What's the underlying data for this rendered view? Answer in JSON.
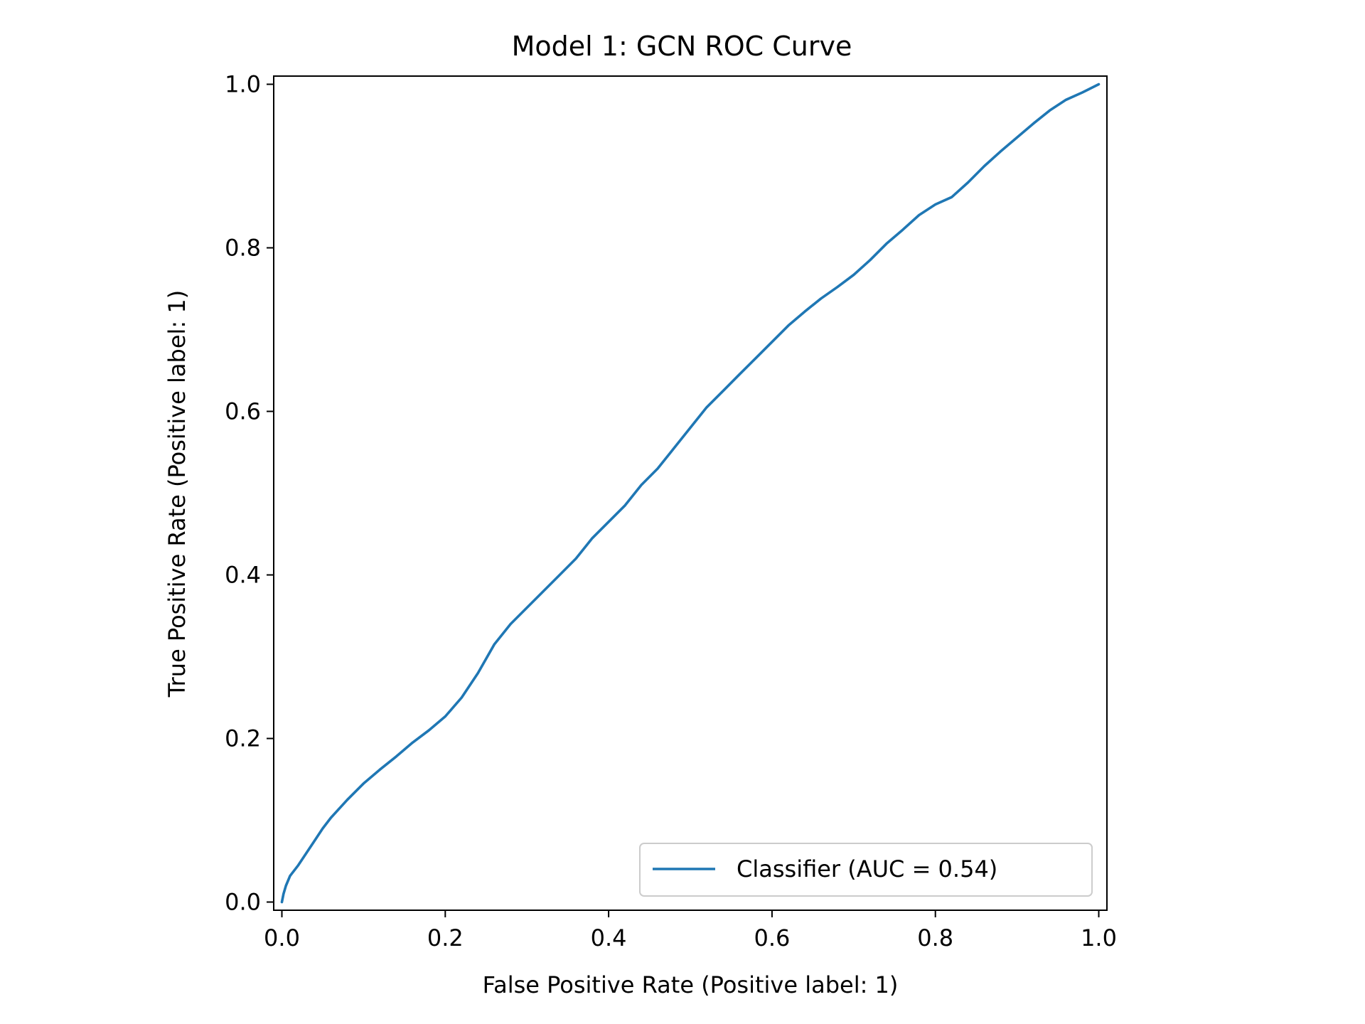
{
  "chart_data": {
    "type": "line",
    "title": "Model 1: GCN ROC Curve",
    "xlabel": "False Positive Rate (Positive label: 1)",
    "ylabel": "True Positive Rate (Positive label: 1)",
    "xlim": [
      -0.01,
      1.01
    ],
    "ylim": [
      -0.01,
      1.01
    ],
    "x_ticks": [
      0.0,
      0.2,
      0.4,
      0.6,
      0.8,
      1.0
    ],
    "x_tick_labels": [
      "0.0",
      "0.2",
      "0.4",
      "0.6",
      "0.8",
      "1.0"
    ],
    "y_ticks": [
      0.0,
      0.2,
      0.4,
      0.6,
      0.8,
      1.0
    ],
    "y_tick_labels": [
      "0.0",
      "0.2",
      "0.4",
      "0.6",
      "0.8",
      "1.0"
    ],
    "grid": false,
    "legend_position": "lower-right",
    "series": [
      {
        "name": "Classifier (AUC = 0.54)",
        "color": "#1f77b4",
        "x": [
          0.0,
          0.002,
          0.005,
          0.01,
          0.02,
          0.03,
          0.04,
          0.05,
          0.06,
          0.08,
          0.1,
          0.12,
          0.14,
          0.16,
          0.18,
          0.2,
          0.22,
          0.24,
          0.26,
          0.28,
          0.3,
          0.32,
          0.34,
          0.36,
          0.38,
          0.4,
          0.42,
          0.44,
          0.46,
          0.48,
          0.5,
          0.52,
          0.54,
          0.56,
          0.58,
          0.6,
          0.62,
          0.64,
          0.66,
          0.68,
          0.7,
          0.72,
          0.74,
          0.76,
          0.78,
          0.8,
          0.82,
          0.84,
          0.86,
          0.88,
          0.9,
          0.92,
          0.94,
          0.96,
          0.98,
          0.99,
          1.0
        ],
        "y": [
          0.0,
          0.01,
          0.02,
          0.032,
          0.045,
          0.06,
          0.075,
          0.09,
          0.103,
          0.125,
          0.145,
          0.162,
          0.178,
          0.195,
          0.21,
          0.227,
          0.25,
          0.28,
          0.315,
          0.34,
          0.36,
          0.38,
          0.4,
          0.42,
          0.445,
          0.465,
          0.485,
          0.51,
          0.53,
          0.555,
          0.58,
          0.605,
          0.625,
          0.645,
          0.665,
          0.685,
          0.705,
          0.722,
          0.738,
          0.752,
          0.767,
          0.785,
          0.805,
          0.822,
          0.84,
          0.853,
          0.862,
          0.88,
          0.9,
          0.918,
          0.935,
          0.952,
          0.968,
          0.981,
          0.99,
          0.995,
          1.0
        ]
      }
    ]
  }
}
